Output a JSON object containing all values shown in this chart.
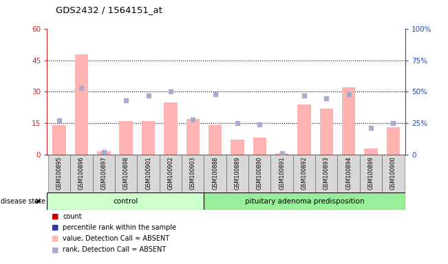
{
  "title": "GDS2432 / 1564151_at",
  "samples": [
    "GSM100895",
    "GSM100896",
    "GSM100897",
    "GSM100898",
    "GSM100901",
    "GSM100902",
    "GSM100903",
    "GSM100888",
    "GSM100889",
    "GSM100890",
    "GSM100891",
    "GSM100892",
    "GSM100893",
    "GSM100894",
    "GSM100899",
    "GSM100900"
  ],
  "bar_values": [
    14,
    48,
    1.5,
    16,
    16,
    25,
    17,
    14,
    7,
    8,
    0.5,
    24,
    22,
    32,
    3,
    13
  ],
  "rank_values": [
    27,
    53,
    2,
    43,
    47,
    50,
    28,
    48,
    25,
    24,
    1,
    47,
    45,
    48,
    21,
    25
  ],
  "left_ylim": [
    0,
    60
  ],
  "right_ylim": [
    0,
    100
  ],
  "left_yticks": [
    0,
    15,
    30,
    45,
    60
  ],
  "right_yticks": [
    0,
    25,
    50,
    75,
    100
  ],
  "right_yticklabels": [
    "0",
    "25%",
    "50%",
    "75%",
    "100%"
  ],
  "bar_color": "#ffb3b3",
  "rank_color": "#aaaacc",
  "control_count": 7,
  "total_count": 16,
  "group_labels": [
    "control",
    "pituitary adenoma predisposition"
  ],
  "group_colors": [
    "#ccffcc",
    "#99ee99"
  ],
  "disease_state_label": "disease state",
  "legend_items": [
    {
      "label": "count",
      "color": "#cc0000"
    },
    {
      "label": "percentile rank within the sample",
      "color": "#3333aa"
    },
    {
      "label": "value, Detection Call = ABSENT",
      "color": "#ffb3b3"
    },
    {
      "label": "rank, Detection Call = ABSENT",
      "color": "#aaaacc"
    }
  ],
  "bg_color": "#ffffff",
  "left_axis_color": "#cc2222",
  "right_axis_color": "#2244bb"
}
